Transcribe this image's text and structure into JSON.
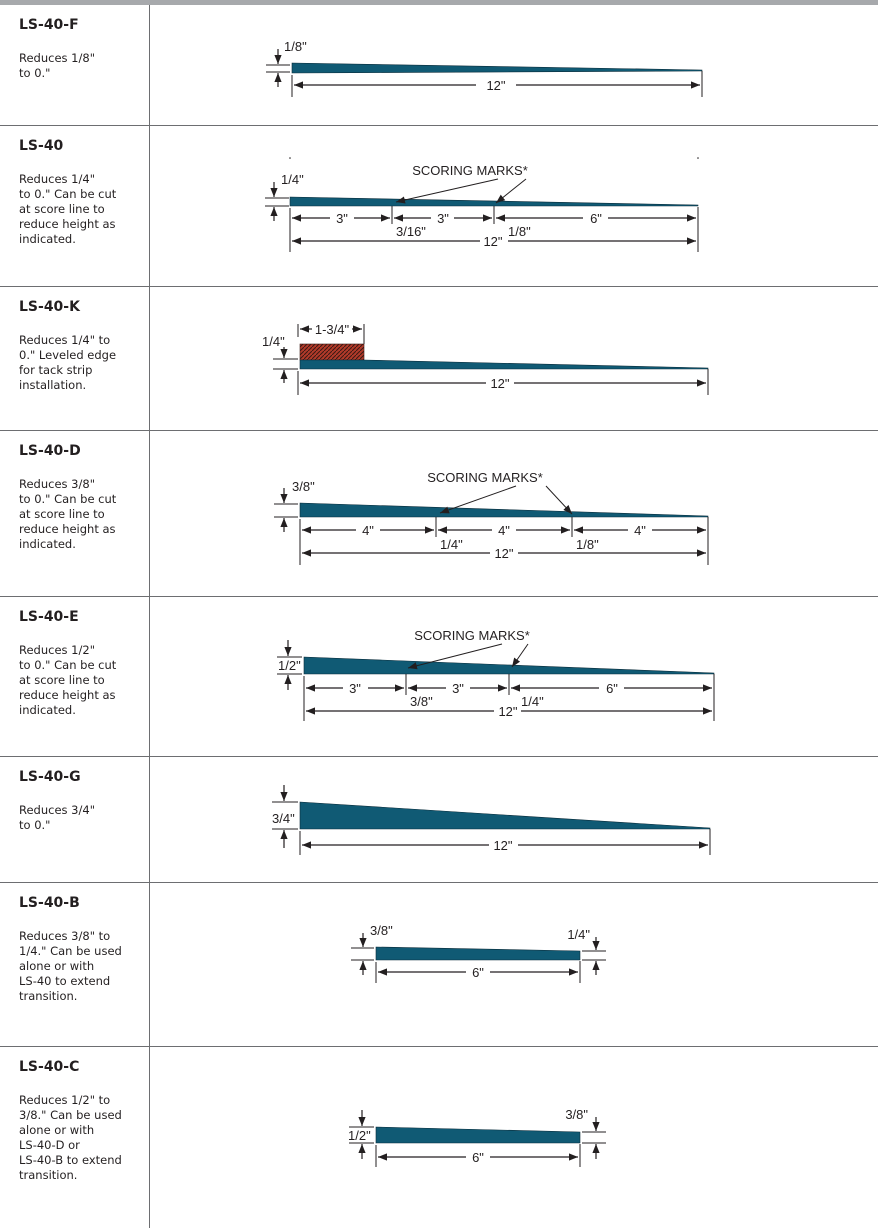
{
  "rows": [
    {
      "code": "LS-40-F",
      "desc": [
        "Reduces 1/8\"",
        "to 0.\""
      ],
      "labels": {
        "height": "1/8\"",
        "len": "12\""
      }
    },
    {
      "code": "LS-40",
      "desc": [
        "Reduces 1/4\"",
        "to 0.\" Can be cut",
        "at score line to",
        "reduce height as",
        "indicated."
      ],
      "labels": {
        "scoring": "SCORING MARKS*",
        "height": "1/4\"",
        "seg1": "3\"",
        "seg2": "3\"",
        "seg3": "6\"",
        "mark1": "3/16\"",
        "mark2": "1/8\"",
        "len": "12\""
      }
    },
    {
      "code": "LS-40-K",
      "desc": [
        "Reduces 1/4\" to",
        "0.\" Leveled edge",
        "for tack strip",
        "installation."
      ],
      "labels": {
        "height": "1/4\"",
        "strip": "1-3/4\"",
        "len": "12\""
      }
    },
    {
      "code": "LS-40-D",
      "desc": [
        "Reduces 3/8\"",
        "to 0.\" Can be cut",
        "at score line to",
        "reduce height as",
        "indicated."
      ],
      "labels": {
        "scoring": "SCORING MARKS*",
        "height": "3/8\"",
        "seg1": "4\"",
        "seg2": "4\"",
        "seg3": "4\"",
        "mark1": "1/4\"",
        "mark2": "1/8\"",
        "len": "12\""
      }
    },
    {
      "code": "LS-40-E",
      "desc": [
        "Reduces 1/2\"",
        "to 0.\" Can be cut",
        "at score line to",
        "reduce height as",
        "indicated."
      ],
      "labels": {
        "scoring": "SCORING MARKS*",
        "height": "1/2\"",
        "seg1": "3\"",
        "seg2": "3\"",
        "seg3": "6\"",
        "mark1": "3/8\"",
        "mark2": "1/4\"",
        "len": "12\""
      }
    },
    {
      "code": "LS-40-G",
      "desc": [
        "Reduces 3/4\"",
        "to 0.\""
      ],
      "labels": {
        "height": "3/4\"",
        "len": "12\""
      }
    },
    {
      "code": "LS-40-B",
      "desc": [
        "Reduces 3/8\" to",
        "1/4.\" Can be used",
        "alone or with",
        "LS-40 to extend",
        "transition."
      ],
      "labels": {
        "height": "3/8\"",
        "end": "1/4\"",
        "len": "6\""
      }
    },
    {
      "code": "LS-40-C",
      "desc": [
        "Reduces 1/2\" to",
        "3/8.\" Can be used",
        "alone or with",
        "LS-40-D or",
        "LS-40-B to extend",
        "transition."
      ],
      "labels": {
        "height": "1/2\"",
        "end": "3/8\"",
        "len": "6\""
      }
    }
  ],
  "colors": {
    "profile": "#105a74",
    "tack_strip": "#b33a2a",
    "rule": "#6d6e71",
    "topbar": "#a7a9ac"
  }
}
